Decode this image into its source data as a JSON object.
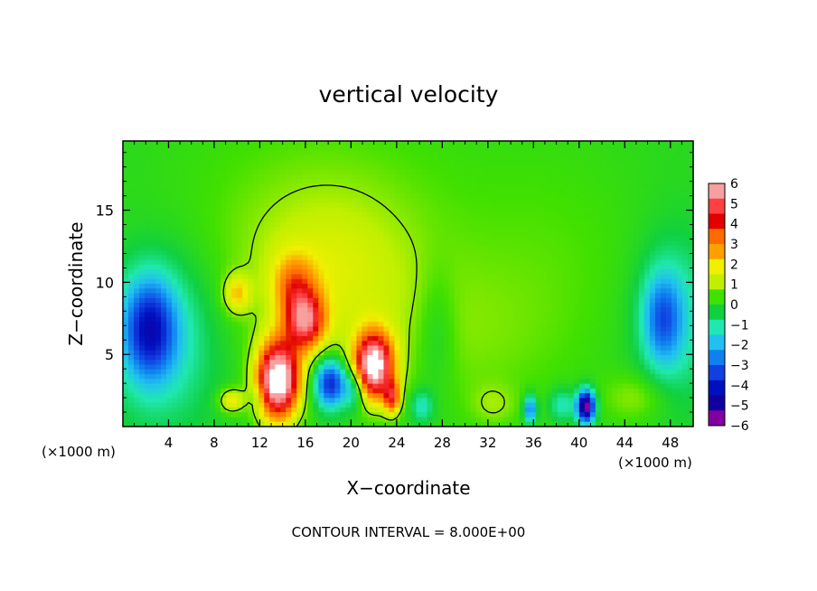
{
  "chart_data": {
    "type": "heatmap",
    "title": "vertical velocity",
    "xlabel": "X−coordinate",
    "ylabel": "Z−coordinate",
    "x_unit_left": "(×1000 m)",
    "x_unit_right": "(×1000 m)",
    "xlim": [
      0,
      50
    ],
    "ylim": [
      0,
      19.8
    ],
    "x_ticks": [
      4,
      8,
      12,
      16,
      20,
      24,
      28,
      32,
      36,
      40,
      44,
      48
    ],
    "y_ticks": [
      5,
      10,
      15
    ],
    "footer": "CONTOUR INTERVAL = 8.000E+00",
    "colorbar": {
      "labels": [
        "6",
        "5",
        "4",
        "3",
        "2",
        "1",
        "0",
        "−1",
        "−2",
        "−3",
        "−4",
        "−5",
        "−6"
      ],
      "colors": [
        "#f8a0a0",
        "#ff4040",
        "#e00000",
        "#ff6a00",
        "#ffa000",
        "#f0f000",
        "#c0f000",
        "#40e000",
        "#10d040",
        "#20e8b0",
        "#20c0f0",
        "#1080f0",
        "#1040e0",
        "#0010c0",
        "#1000a0",
        "#8000a0"
      ]
    },
    "features": [
      {
        "x": 13.6,
        "z": 3.2,
        "w": 7.5,
        "sx": 1.3,
        "sz": 1.9
      },
      {
        "x": 22.0,
        "z": 4.2,
        "w": 7.0,
        "sx": 1.2,
        "sz": 1.6
      },
      {
        "x": 16.0,
        "z": 7.3,
        "w": 4.6,
        "sx": 1.2,
        "sz": 1.4
      },
      {
        "x": 15.0,
        "z": 9.8,
        "w": 2.3,
        "sx": 1.3,
        "sz": 1.5
      },
      {
        "x": 10.0,
        "z": 9.2,
        "w": 2.0,
        "sx": 0.8,
        "sz": 0.9
      },
      {
        "x": 18.0,
        "z": 10.0,
        "w": 1.3,
        "sx": 5.5,
        "sz": 4.0
      },
      {
        "x": 17.5,
        "z": 15.5,
        "w": 0.6,
        "sx": 9.0,
        "sz": 5.0
      },
      {
        "x": 30.0,
        "z": 6.0,
        "w": 0.6,
        "sx": 6.0,
        "sz": 4.0
      },
      {
        "x": 23.6,
        "z": 2.0,
        "w": 3.5,
        "sx": 0.5,
        "sz": 0.8
      },
      {
        "x": 9.5,
        "z": 1.8,
        "w": 2.0,
        "sx": 0.8,
        "sz": 0.6
      },
      {
        "x": 18.2,
        "z": 3.0,
        "w": -4.3,
        "sx": 1.0,
        "sz": 1.2
      },
      {
        "x": 20.3,
        "z": 2.6,
        "w": -2.0,
        "sx": 0.7,
        "sz": 1.0
      },
      {
        "x": 2.3,
        "z": 6.8,
        "w": -3.5,
        "sx": 1.6,
        "sz": 2.4
      },
      {
        "x": 3.5,
        "z": 6.0,
        "w": -1.5,
        "sx": 3.2,
        "sz": 4.0
      },
      {
        "x": 47.3,
        "z": 7.5,
        "w": -2.5,
        "sx": 1.2,
        "sz": 2.2
      },
      {
        "x": 48.5,
        "z": 7.5,
        "w": -1.3,
        "sx": 2.5,
        "sz": 4.0
      },
      {
        "x": 40.6,
        "z": 1.4,
        "w": -6.5,
        "sx": 0.55,
        "sz": 0.8
      },
      {
        "x": 35.7,
        "z": 1.2,
        "w": -3.2,
        "sx": 0.4,
        "sz": 0.7
      },
      {
        "x": 38.5,
        "z": 1.5,
        "w": -1.5,
        "sx": 0.8,
        "sz": 0.8
      },
      {
        "x": 26.2,
        "z": 1.4,
        "w": -1.6,
        "sx": 0.7,
        "sz": 0.8
      },
      {
        "x": 27.5,
        "z": 6.5,
        "w": -0.8,
        "sx": 1.2,
        "sz": 3.0
      },
      {
        "x": 11.8,
        "z": 2.0,
        "w": -0.8,
        "sx": 0.5,
        "sz": 0.6
      },
      {
        "x": 45.0,
        "z": 2.0,
        "w": 0.9,
        "sx": 2.0,
        "sz": 1.2
      },
      {
        "x": 32.5,
        "z": 1.5,
        "w": 0.7,
        "sx": 1.4,
        "sz": 1.0
      },
      {
        "x": 38.0,
        "z": 12.0,
        "w": 0.4,
        "sx": 6.0,
        "sz": 6.0
      }
    ]
  }
}
